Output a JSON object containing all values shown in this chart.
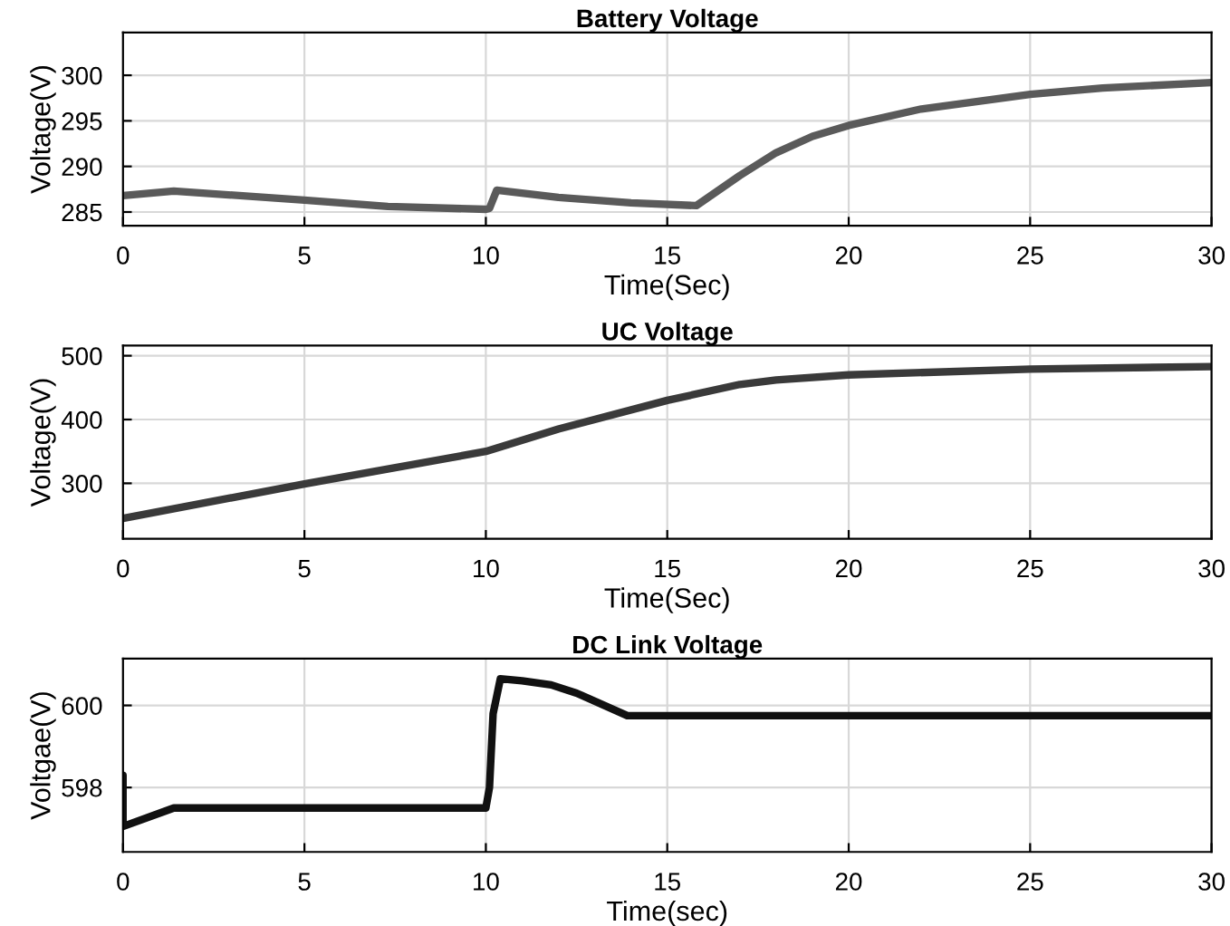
{
  "chart_data": [
    {
      "type": "line",
      "title": "Battery Voltage",
      "xlabel": "Time(Sec)",
      "ylabel": "Voltage(V)",
      "xlim": [
        0,
        30
      ],
      "xticks": [
        0,
        5,
        10,
        15,
        20,
        25,
        30
      ],
      "ylim": [
        283.5,
        304.7
      ],
      "yticks": [
        285,
        290,
        295,
        300
      ],
      "grid": true,
      "legend": false,
      "series": [
        {
          "color": "#5a5a5a",
          "x": [
            0,
            1.4,
            5,
            7.3,
            10,
            10.1,
            10.3,
            12,
            14,
            15.8,
            17,
            18,
            19,
            20,
            22,
            25,
            27,
            30
          ],
          "values": [
            286.8,
            287.3,
            286.3,
            285.6,
            285.3,
            285.4,
            287.4,
            286.6,
            286,
            285.7,
            289,
            291.5,
            293.3,
            294.5,
            296.3,
            297.9,
            298.6,
            299.2
          ]
        }
      ]
    },
    {
      "type": "line",
      "title": "UC Voltage",
      "xlabel": "Time(Sec)",
      "ylabel": "Voltage(V)",
      "xlim": [
        0,
        30
      ],
      "xticks": [
        0,
        5,
        10,
        15,
        20,
        25,
        30
      ],
      "ylim": [
        213,
        516
      ],
      "yticks": [
        300,
        400,
        500
      ],
      "grid": true,
      "legend": false,
      "series": [
        {
          "color": "#3a3a3a",
          "x": [
            0,
            5,
            10,
            12,
            15,
            17,
            18,
            20,
            25,
            30
          ],
          "values": [
            245,
            299,
            350,
            385,
            430,
            455,
            462,
            470,
            479,
            483
          ]
        }
      ]
    },
    {
      "type": "line",
      "title": "DC Link Voltage",
      "xlabel": "Time(sec)",
      "ylabel": "Voltgae(V)",
      "xlim": [
        0,
        30
      ],
      "xticks": [
        0,
        5,
        10,
        15,
        20,
        25,
        30
      ],
      "ylim": [
        596.43,
        601.14
      ],
      "yticks": [
        598,
        600
      ],
      "grid": true,
      "legend": false,
      "series": [
        {
          "color": "#111111",
          "x": [
            0,
            0,
            1.4,
            10,
            10.1,
            10.2,
            10.4,
            11,
            11.8,
            12.5,
            13.9,
            20,
            30
          ],
          "values": [
            598.3,
            597.05,
            597.5,
            597.5,
            598,
            599.8,
            600.65,
            600.6,
            600.5,
            600.3,
            599.75,
            599.75,
            599.75
          ]
        }
      ]
    }
  ]
}
